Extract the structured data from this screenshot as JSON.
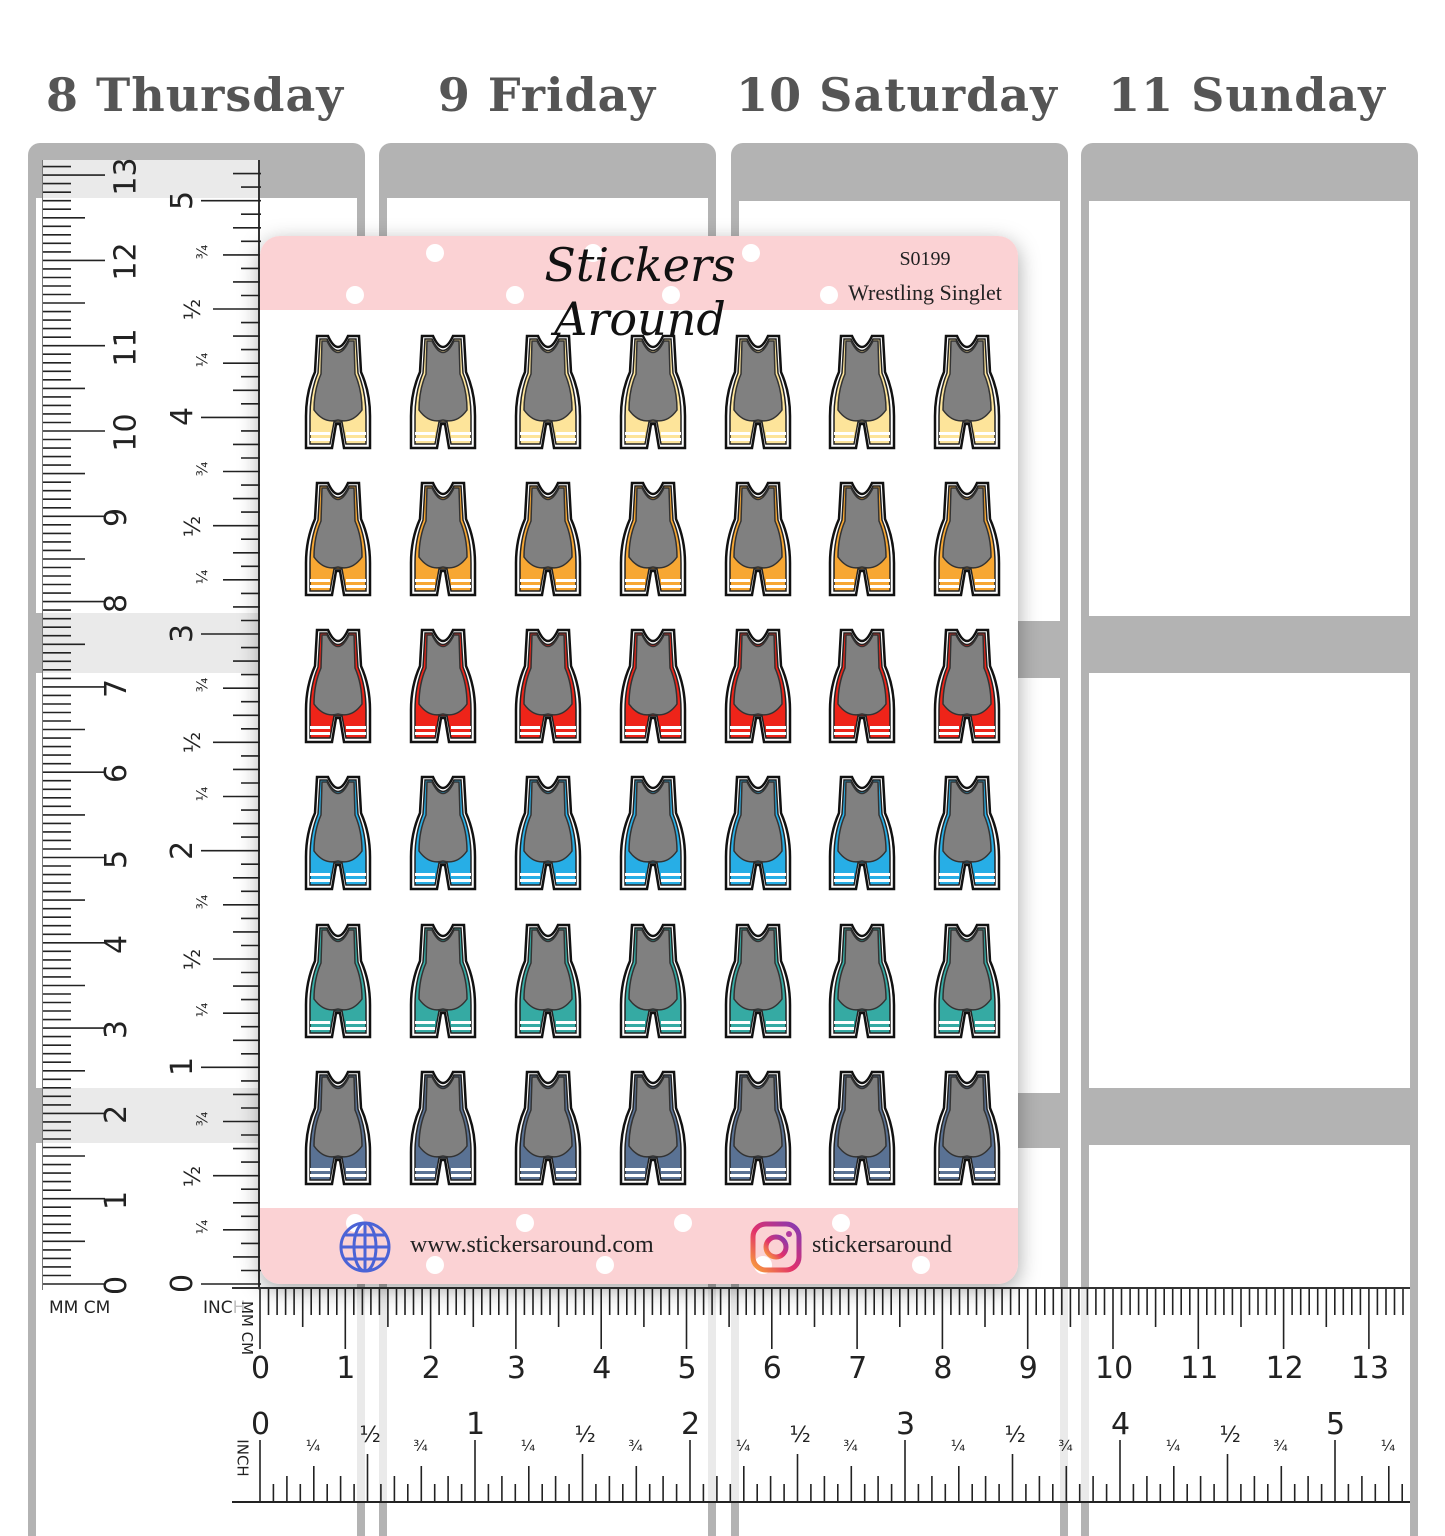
{
  "days": [
    "8 Thursday",
    "9 Friday",
    "10 Saturday",
    "11 Sunday"
  ],
  "sheet": {
    "brand": "Stickers Around",
    "code": "S0199",
    "subtitle": "Wrestling Singlet",
    "website": "www.stickersaround.com",
    "instagram": "stickersaround",
    "icons": [
      "globe-icon",
      "instagram-icon"
    ],
    "rows": 6,
    "stickers_per_row": 7,
    "row_colors": [
      "#fde49a",
      "#f7a733",
      "#ee2419",
      "#27aee6",
      "#35aaa3",
      "#5a7294"
    ],
    "body_color": "#808080"
  },
  "vertical_ruler": {
    "cm_labels": [
      "0",
      "1",
      "2",
      "3",
      "4",
      "5",
      "6",
      "7",
      "8",
      "9",
      "10",
      "11",
      "12",
      "13"
    ],
    "inch_labels": [
      "0",
      "1",
      "2",
      "3",
      "4",
      "5"
    ],
    "fraction_labels": [
      "¼",
      "½",
      "¾"
    ],
    "unit_label_left": "MM CM",
    "unit_label_right": "INCH"
  },
  "horizontal_ruler": {
    "cm_labels": [
      "0",
      "1",
      "2",
      "3",
      "4",
      "5",
      "6",
      "7",
      "8",
      "9",
      "10",
      "11",
      "12",
      "13"
    ],
    "inch_labels": [
      "0",
      "1",
      "2",
      "3",
      "4",
      "5"
    ],
    "fraction_labels": [
      "¼",
      "½",
      "¾"
    ],
    "unit_label_top": "MM CM",
    "unit_label_bottom": "INCH"
  }
}
